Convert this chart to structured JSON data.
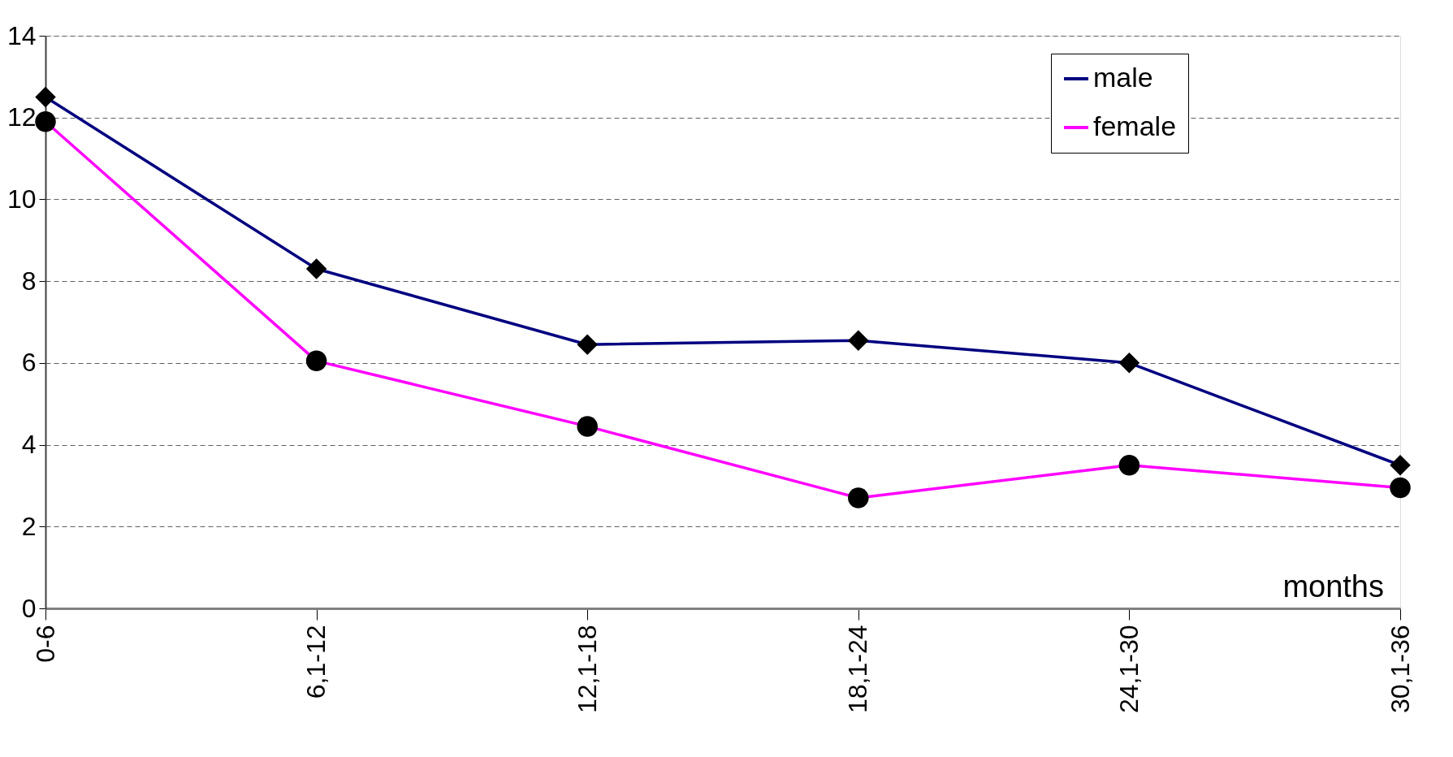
{
  "chart_data": {
    "type": "line",
    "xlabel": "months",
    "categories": [
      "0-6",
      "6,1-12",
      "12,1-18",
      "18,1-24",
      "24,1-30",
      "30,1-36"
    ],
    "series": [
      {
        "name": "male",
        "color": "#000080",
        "marker": "diamond",
        "values": [
          12.5,
          8.3,
          6.45,
          6.55,
          6.0,
          3.5
        ]
      },
      {
        "name": "female",
        "color": "#ff00ff",
        "marker": "circle",
        "values": [
          11.9,
          6.05,
          4.45,
          2.7,
          3.5,
          2.95
        ]
      }
    ],
    "ylim": [
      0,
      14
    ],
    "yticks": [
      0,
      2,
      4,
      6,
      8,
      10,
      12,
      14
    ],
    "grid": "y",
    "legend": "top right",
    "line_style": "solid"
  }
}
